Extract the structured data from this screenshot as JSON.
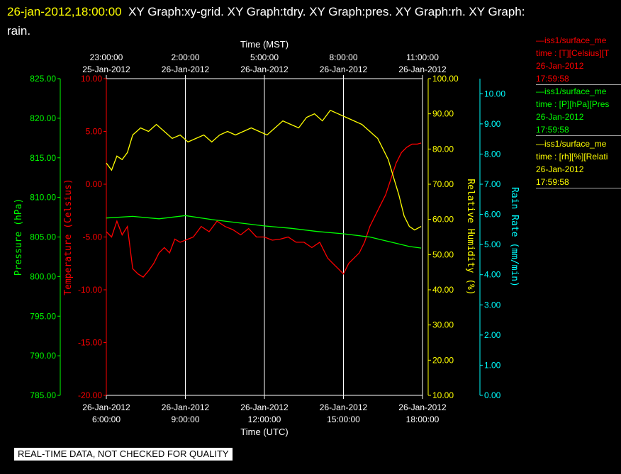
{
  "header": {
    "date": "26-jan-2012,18:00:00",
    "titles": "XY Graph:xy-grid.  XY Graph:tdry.  XY Graph:pres.  XY Graph:rh.  XY Graph:",
    "titles_line2": "rain."
  },
  "legend": [
    {
      "series": "—iss1/surface_me",
      "fields": "time : [T][Celsius][T",
      "date": "26-Jan-2012",
      "time": "17:59:58",
      "color": "#ff0000"
    },
    {
      "series": "—iss1/surface_me",
      "fields": "time : [P][hPa][Pres",
      "date": "26-Jan-2012",
      "time": "17:59:58",
      "color": "#00ff00"
    },
    {
      "series": "—iss1/surface_me",
      "fields": "time : [rh][%][Relati",
      "date": "26-Jan-2012",
      "time": "17:59:58",
      "color": "#ffff00"
    }
  ],
  "footer": "REAL-TIME DATA, NOT CHECKED FOR QUALITY",
  "chart_data": {
    "type": "line",
    "x_bottom_label": "Time (UTC)",
    "x_top_label": "Time (MST)",
    "x_range_hours_utc": [
      6,
      18
    ],
    "x_ticks_bottom": [
      {
        "date": "26-Jan-2012",
        "time": "6:00:00"
      },
      {
        "date": "26-Jan-2012",
        "time": "9:00:00"
      },
      {
        "date": "26-Jan-2012",
        "time": "12:00:00"
      },
      {
        "date": "26-Jan-2012",
        "time": "15:00:00"
      },
      {
        "date": "26-Jan-2012",
        "time": "18:00:00"
      }
    ],
    "x_ticks_top": [
      {
        "date": "25-Jan-2012",
        "time": "23:00:00"
      },
      {
        "date": "26-Jan-2012",
        "time": "2:00:00"
      },
      {
        "date": "26-Jan-2012",
        "time": "5:00:00"
      },
      {
        "date": "26-Jan-2012",
        "time": "8:00:00"
      },
      {
        "date": "26-Jan-2012",
        "time": "11:00:00"
      }
    ],
    "axes": {
      "pressure": {
        "label": "Pressure (hPa)",
        "color": "#00ff00",
        "range": [
          785,
          825
        ],
        "ticks": [
          "785.00",
          "790.00",
          "795.00",
          "800.00",
          "805.00",
          "810.00",
          "815.00",
          "820.00",
          "825.00"
        ]
      },
      "temperature": {
        "label": "Temperature (Celsius)",
        "color": "#ff0000",
        "range": [
          -20,
          10
        ],
        "ticks": [
          "-20.00",
          "-15.00",
          "-10.00",
          "-5.00",
          "0.00",
          "5.00",
          "10.00"
        ]
      },
      "humidity": {
        "label": "Relative Humidity (%)",
        "color": "#ffff00",
        "range": [
          10,
          100
        ],
        "ticks": [
          "10.00",
          "20.00",
          "30.00",
          "40.00",
          "50.00",
          "60.00",
          "70.00",
          "80.00",
          "90.00",
          "100.00"
        ]
      },
      "rain": {
        "label": "Rain Rate (mm/min)",
        "color": "#00ffff",
        "range": [
          0,
          10.5
        ],
        "ticks": [
          "0.00",
          "1.00",
          "2.00",
          "3.00",
          "4.00",
          "5.00",
          "6.00",
          "7.00",
          "8.00",
          "9.00",
          "10.00"
        ]
      }
    },
    "series": [
      {
        "name": "Temperature",
        "axis": "temperature",
        "color": "#ff0000",
        "x": [
          6.0,
          6.2,
          6.4,
          6.6,
          6.8,
          7.0,
          7.2,
          7.4,
          7.6,
          7.8,
          8.0,
          8.2,
          8.4,
          8.6,
          8.8,
          9.0,
          9.3,
          9.6,
          9.9,
          10.2,
          10.5,
          10.8,
          11.1,
          11.4,
          11.7,
          12.0,
          12.3,
          12.6,
          12.9,
          13.2,
          13.5,
          13.8,
          14.1,
          14.4,
          14.6,
          14.8,
          15.0,
          15.2,
          15.4,
          15.6,
          15.8,
          16.0,
          16.2,
          16.4,
          16.6,
          16.8,
          17.0,
          17.2,
          17.4,
          17.6,
          17.8,
          17.95
        ],
        "y": [
          -4.5,
          -5.0,
          -3.5,
          -4.8,
          -4.0,
          -8.0,
          -8.5,
          -8.8,
          -8.2,
          -7.5,
          -6.5,
          -6.0,
          -6.5,
          -5.2,
          -5.5,
          -5.3,
          -5.0,
          -4.0,
          -4.5,
          -3.5,
          -4.0,
          -4.3,
          -4.8,
          -4.2,
          -5.0,
          -5.0,
          -5.3,
          -5.2,
          -5.0,
          -5.5,
          -5.5,
          -6.0,
          -5.5,
          -7.0,
          -7.5,
          -8.0,
          -8.5,
          -7.5,
          -7.0,
          -6.5,
          -5.5,
          -4.0,
          -3.0,
          -2.0,
          -1.0,
          0.5,
          2.0,
          3.0,
          3.5,
          3.8,
          3.8,
          3.9
        ]
      },
      {
        "name": "Pressure",
        "axis": "pressure",
        "color": "#00ff00",
        "x": [
          6.0,
          7.0,
          8.0,
          9.0,
          10.0,
          11.0,
          12.0,
          13.0,
          14.0,
          15.0,
          16.0,
          16.5,
          17.0,
          17.5,
          17.95
        ],
        "y": [
          807.4,
          807.6,
          807.3,
          807.7,
          807.2,
          806.8,
          806.4,
          806.1,
          805.7,
          805.4,
          805.0,
          804.6,
          804.2,
          803.8,
          803.6
        ]
      },
      {
        "name": "Relative Humidity",
        "axis": "humidity",
        "color": "#ffff00",
        "x": [
          6.0,
          6.2,
          6.4,
          6.6,
          6.8,
          7.0,
          7.3,
          7.6,
          7.9,
          8.2,
          8.5,
          8.8,
          9.1,
          9.4,
          9.7,
          10.0,
          10.3,
          10.6,
          10.9,
          11.2,
          11.5,
          11.8,
          12.1,
          12.4,
          12.7,
          13.0,
          13.3,
          13.6,
          13.9,
          14.2,
          14.5,
          14.8,
          15.1,
          15.4,
          15.7,
          16.0,
          16.3,
          16.5,
          16.7,
          16.9,
          17.1,
          17.3,
          17.5,
          17.7,
          17.95
        ],
        "y": [
          76,
          74,
          78,
          77,
          79,
          84,
          86,
          85,
          87,
          85,
          83,
          84,
          82,
          83,
          84,
          82,
          84,
          85,
          84,
          85,
          86,
          85,
          84,
          86,
          88,
          87,
          86,
          89,
          90,
          88,
          91,
          90,
          89,
          88,
          87,
          85,
          83,
          80,
          77,
          72,
          67,
          61,
          58,
          57,
          58
        ]
      },
      {
        "name": "Rain Rate",
        "axis": "rain",
        "color": "#00ffff",
        "x": [],
        "y": []
      }
    ]
  }
}
